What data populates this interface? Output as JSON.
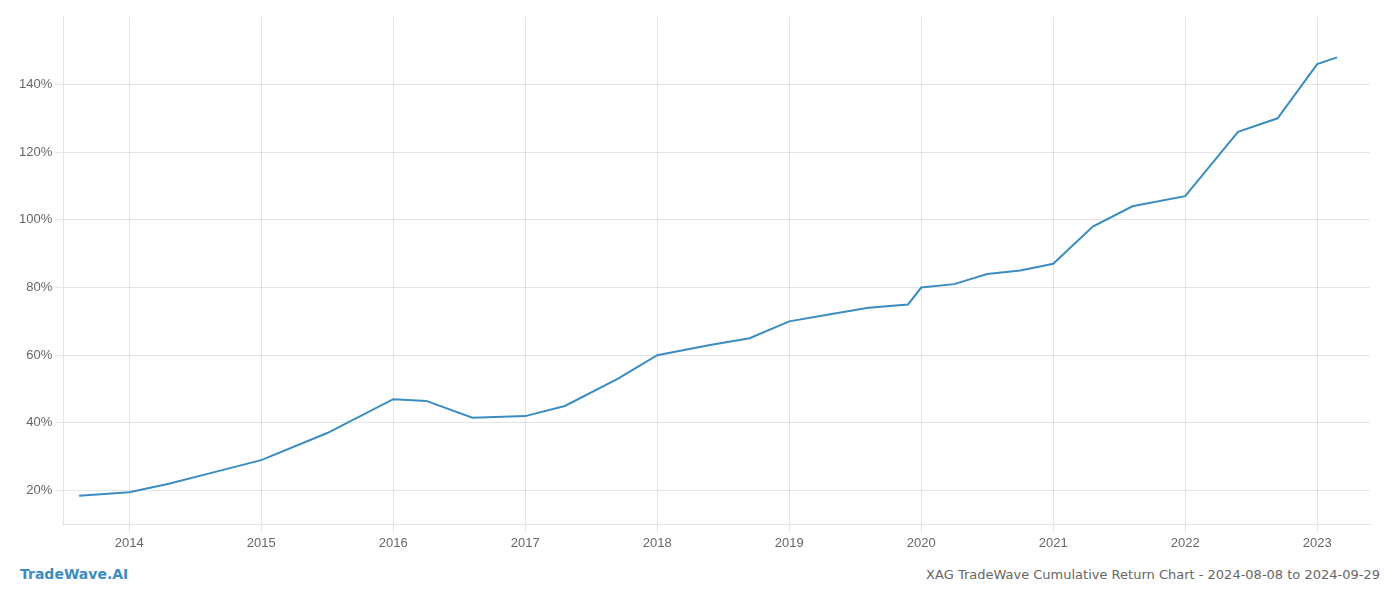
{
  "chart_data": {
    "type": "line",
    "title": "XAG TradeWave Cumulative Return Chart - 2024-08-08 to 2024-09-29",
    "annotations": [
      "TradeWave.AI"
    ],
    "x": [
      2013.62,
      2014.0,
      2014.3,
      2014.6,
      2015.0,
      2015.5,
      2016.0,
      2016.25,
      2016.6,
      2017.0,
      2017.3,
      2017.7,
      2018.0,
      2018.4,
      2018.7,
      2019.0,
      2019.3,
      2019.6,
      2019.9,
      2020.0,
      2020.25,
      2020.5,
      2020.75,
      2021.0,
      2021.3,
      2021.6,
      2022.0,
      2022.4,
      2022.7,
      2023.0,
      2023.15
    ],
    "values": [
      18.5,
      19.5,
      22,
      25,
      29,
      37,
      47,
      46.5,
      41.5,
      42,
      45,
      53,
      60,
      63,
      65,
      70,
      72,
      74,
      75,
      80,
      81,
      84,
      85,
      87,
      98,
      104,
      107,
      126,
      130,
      146,
      148
    ],
    "color": "#3a8cc1",
    "xlim": [
      2013.5,
      2023.4
    ],
    "xticks": [
      2014,
      2015,
      2016,
      2017,
      2018,
      2019,
      2020,
      2021,
      2022,
      2023
    ],
    "ylim": [
      10,
      160
    ],
    "yticks": [
      {
        "value": 20,
        "label": "20%"
      },
      {
        "value": 40,
        "label": "40%"
      },
      {
        "value": 60,
        "label": "60%"
      },
      {
        "value": 80,
        "label": "80%"
      },
      {
        "value": 100,
        "label": "100%"
      },
      {
        "value": 120,
        "label": "120%"
      },
      {
        "value": 140,
        "label": "140%"
      }
    ],
    "grid": true
  }
}
